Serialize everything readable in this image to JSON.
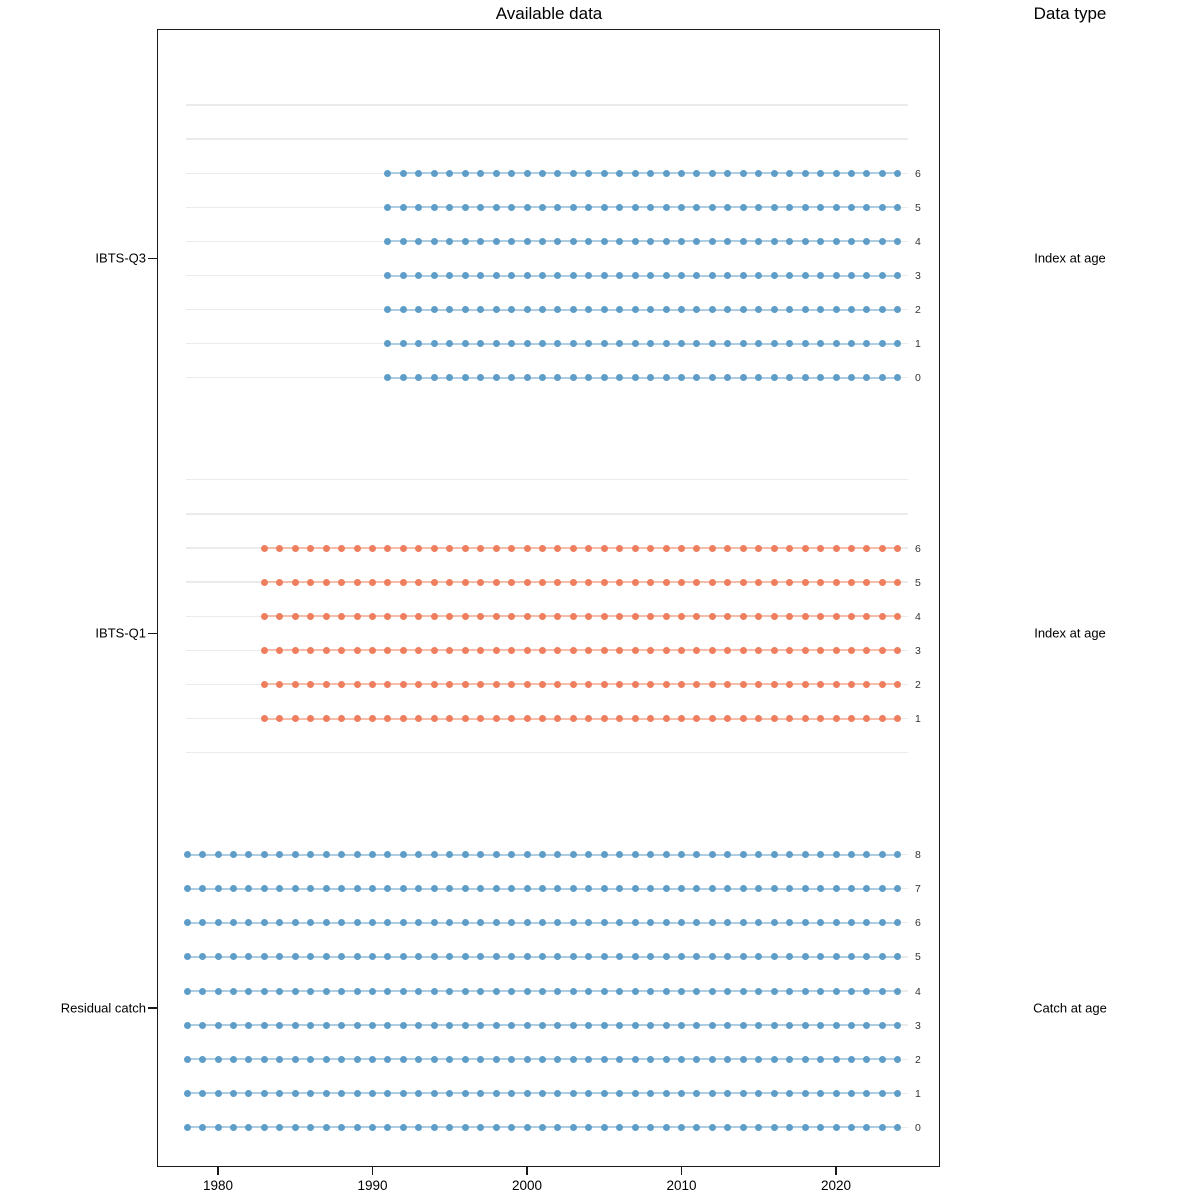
{
  "figure": {
    "title": "Available data",
    "right_header": "Data type"
  },
  "chart_data": {
    "type": "scatter",
    "title": "Available data",
    "right_column_header": "Data type",
    "x_axis": {
      "ticks": [
        1980,
        1990,
        2000,
        2010,
        2020
      ],
      "min": 1977,
      "max": 2026
    },
    "age_slots": [
      8,
      7,
      6,
      5,
      4,
      3,
      2,
      1,
      0
    ],
    "groups": [
      {
        "name": "IBTS-Q3",
        "data_type": "Index at age",
        "color": "#5d9dc8",
        "line_color": "#aecde3",
        "ages": [
          6,
          5,
          4,
          3,
          2,
          1,
          0
        ],
        "year_start": 1991,
        "year_end": 2024
      },
      {
        "name": "IBTS-Q1",
        "data_type": "Index at age",
        "color": "#ee7e5d",
        "line_color": "#f6bdaa",
        "ages": [
          6,
          5,
          4,
          3,
          2,
          1
        ],
        "year_start": 1983,
        "year_end": 2024
      },
      {
        "name": "Residual catch",
        "data_type": "Catch at age",
        "color": "#5d9dc8",
        "line_color": "#aecde3",
        "ages": [
          8,
          7,
          6,
          5,
          4,
          3,
          2,
          1,
          0
        ],
        "year_start": 1978,
        "year_end": 2024
      }
    ]
  }
}
